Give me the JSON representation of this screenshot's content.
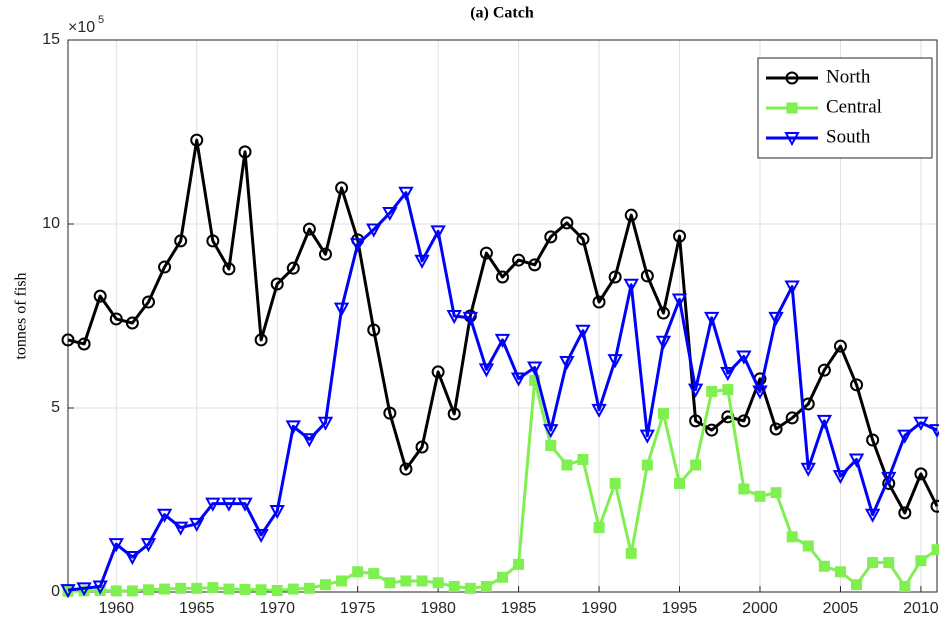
{
  "chart_data": {
    "type": "line",
    "title": "(a) Catch",
    "y_label": "tonnes of fish",
    "y_multiplier": "×10",
    "y_multiplier_exponent": "5",
    "x": [
      1957,
      1958,
      1959,
      1960,
      1961,
      1962,
      1963,
      1964,
      1965,
      1966,
      1967,
      1968,
      1969,
      1970,
      1971,
      1972,
      1973,
      1974,
      1975,
      1976,
      1977,
      1978,
      1979,
      1980,
      1981,
      1982,
      1983,
      1984,
      1985,
      1986,
      1987,
      1988,
      1989,
      1990,
      1991,
      1992,
      1993,
      1994,
      1995,
      1996,
      1997,
      1998,
      1999,
      2000,
      2001,
      2002,
      2003,
      2004,
      2005,
      2006,
      2007,
      2008,
      2009,
      2010,
      2011
    ],
    "series": [
      {
        "name": "North",
        "color": "#000000",
        "marker": "circle",
        "values": [
          6.85,
          6.74,
          8.04,
          7.42,
          7.31,
          7.88,
          8.83,
          9.54,
          12.28,
          9.54,
          8.78,
          11.96,
          6.85,
          8.37,
          8.8,
          9.86,
          9.18,
          10.98,
          9.57,
          7.12,
          4.86,
          3.34,
          3.94,
          5.98,
          4.84,
          7.5,
          9.21,
          8.56,
          9.02,
          8.89,
          9.65,
          10.03,
          9.59,
          7.88,
          8.56,
          10.24,
          8.59,
          7.58,
          9.67,
          4.65,
          4.4,
          4.76,
          4.65,
          5.79,
          4.43,
          4.73,
          5.11,
          6.03,
          6.68,
          5.63,
          4.13,
          2.95,
          2.15,
          3.21,
          2.33
        ]
      },
      {
        "name": "Central",
        "color": "#80f050",
        "marker": "square",
        "values": [
          0.02,
          0.03,
          0.04,
          0.03,
          0.03,
          0.06,
          0.08,
          0.1,
          0.1,
          0.12,
          0.08,
          0.07,
          0.06,
          0.04,
          0.08,
          0.1,
          0.2,
          0.3,
          0.55,
          0.5,
          0.25,
          0.3,
          0.3,
          0.25,
          0.15,
          0.1,
          0.15,
          0.4,
          0.75,
          5.75,
          3.98,
          3.45,
          3.6,
          1.75,
          2.95,
          1.05,
          3.45,
          4.85,
          2.95,
          3.45,
          5.45,
          5.5,
          2.8,
          2.6,
          2.7,
          1.5,
          1.25,
          0.7,
          0.55,
          0.2,
          0.8,
          0.8,
          0.15,
          0.85,
          1.15
        ]
      },
      {
        "name": "South",
        "color": "#0000ff",
        "marker": "triangle-down",
        "values": [
          0.05,
          0.1,
          0.15,
          1.3,
          0.95,
          1.3,
          2.1,
          1.75,
          1.85,
          2.4,
          2.4,
          2.4,
          1.55,
          2.2,
          4.5,
          4.15,
          4.6,
          7.7,
          9.45,
          9.85,
          10.3,
          10.85,
          9.0,
          9.8,
          7.5,
          7.45,
          6.05,
          6.85,
          5.8,
          6.1,
          4.4,
          6.25,
          7.1,
          4.95,
          6.3,
          8.35,
          4.25,
          6.8,
          7.95,
          5.5,
          7.45,
          5.95,
          6.4,
          5.45,
          7.45,
          8.3,
          3.35,
          4.65,
          3.15,
          3.6,
          2.1,
          3.1,
          4.25,
          4.6,
          4.4
        ]
      }
    ],
    "xlim": [
      1957,
      2011
    ],
    "xticks": [
      1960,
      1965,
      1970,
      1975,
      1980,
      1985,
      1990,
      1995,
      2000,
      2005,
      2010
    ],
    "ylim": [
      0,
      15
    ],
    "yticks": [
      0,
      5,
      10,
      15
    ],
    "grid": true,
    "legend_position": "upper-right"
  }
}
